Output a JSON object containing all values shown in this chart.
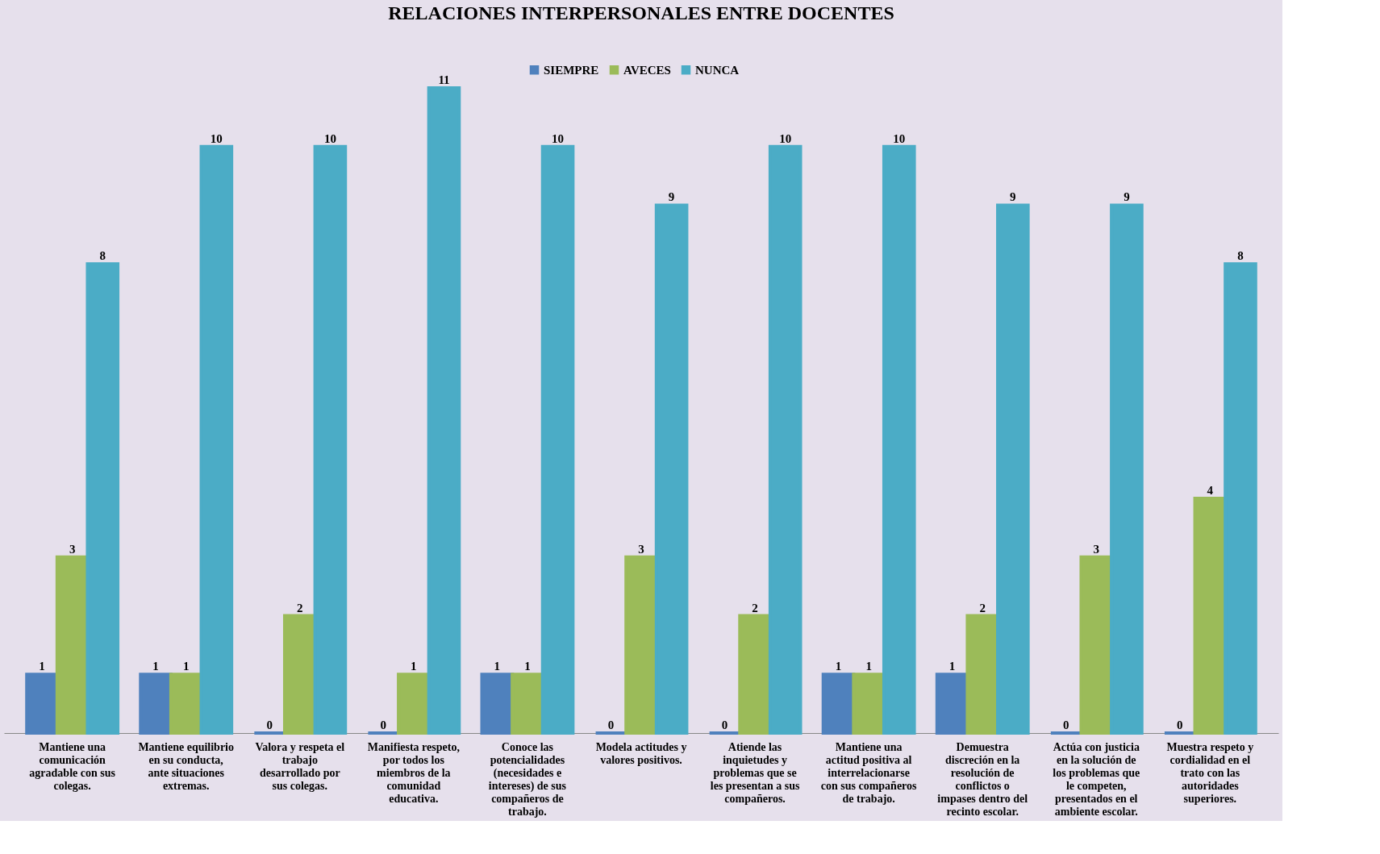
{
  "chart_data": {
    "type": "bar",
    "title": "RELACIONES INTERPERSONALES ENTRE DOCENTES",
    "categories": [
      "Mantiene una comunicación agradable con sus colegas.",
      "Mantiene equilibrio en su conducta, ante situaciones extremas.",
      "Valora y respeta el trabajo desarrollado por sus colegas.",
      "Manifiesta respeto, por todos los miembros de la comunidad educativa.",
      "Conoce las potencialidades (necesidades e intereses) de sus compañeros de trabajo.",
      "Modela actitudes y valores positivos.",
      "Atiende las inquietudes y problemas que se les presentan a sus compañeros.",
      "Mantiene una actitud positiva al interrelacionarse con sus compañeros de trabajo.",
      "Demuestra discreción en la resolución de conflictos o impases dentro del recinto escolar.",
      "Actúa con justicia en la solución de los problemas que le competen, presentados en el ambiente escolar.",
      "Muestra respeto y cordialidad en el trato con las autoridades superiores."
    ],
    "series": [
      {
        "name": "SIEMPRE",
        "color": "#4f81bd",
        "values": [
          1,
          1,
          0,
          0,
          1,
          0,
          0,
          1,
          1,
          0,
          0
        ]
      },
      {
        "name": "AVECES",
        "color": "#9bbb59",
        "values": [
          3,
          1,
          2,
          1,
          1,
          3,
          2,
          1,
          2,
          3,
          4
        ]
      },
      {
        "name": "NUNCA",
        "color": "#4bacc6",
        "values": [
          8,
          10,
          10,
          11,
          10,
          9,
          10,
          10,
          9,
          9,
          8
        ]
      }
    ],
    "data_labels": true,
    "legend": "top",
    "grid": false,
    "tick_labels": "x"
  }
}
